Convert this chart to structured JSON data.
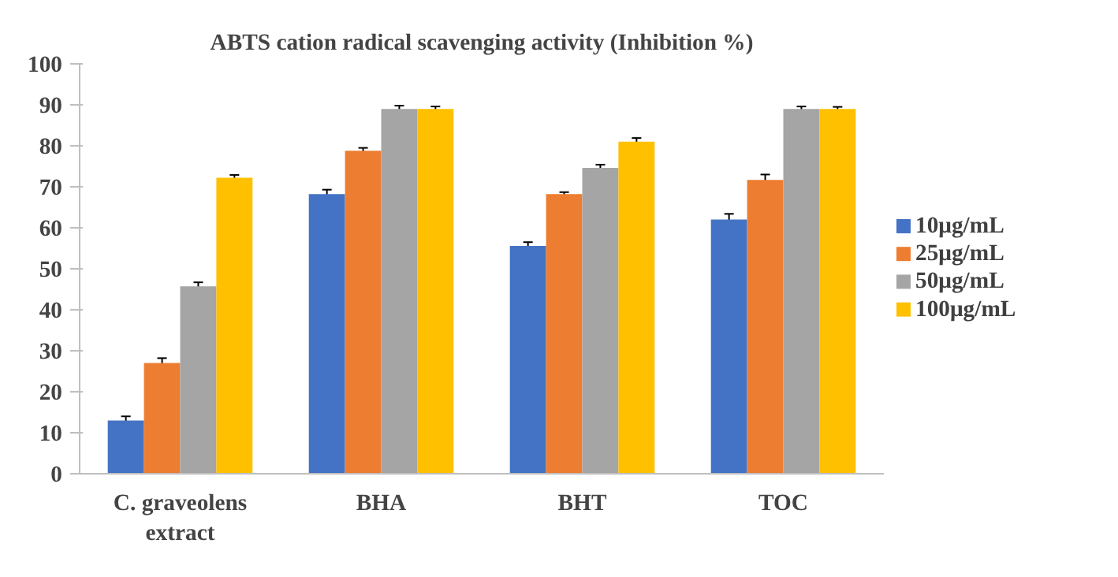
{
  "chart_data": {
    "type": "bar",
    "title": "ABTS cation radical scavenging activity (Inhibition %)",
    "categories": [
      "C. graveolens extract",
      "BHA",
      "BHT",
      "TOC"
    ],
    "series": [
      {
        "name": "10μg/mL",
        "color": "#4472c4",
        "values": [
          13,
          68.2,
          55.6,
          62
        ],
        "errors": [
          1,
          1.1,
          0.9,
          1.4
        ]
      },
      {
        "name": "25μg/mL",
        "color": "#ed7d31",
        "values": [
          27,
          78.8,
          68.2,
          71.7
        ],
        "errors": [
          1.2,
          0.7,
          0.5,
          1.3
        ]
      },
      {
        "name": "50μg/mL",
        "color": "#a5a5a5",
        "values": [
          45.7,
          89,
          74.6,
          89
        ],
        "errors": [
          1,
          0.8,
          0.8,
          0.6
        ]
      },
      {
        "name": "100μg/mL",
        "color": "#ffc000",
        "values": [
          72.2,
          89,
          81,
          89
        ],
        "errors": [
          0.7,
          0.6,
          0.9,
          0.5
        ]
      }
    ],
    "ylim": [
      0,
      100
    ],
    "yticks": [
      0,
      10,
      20,
      30,
      40,
      50,
      60,
      70,
      80,
      90,
      100
    ],
    "grid": false,
    "legend": "right"
  }
}
